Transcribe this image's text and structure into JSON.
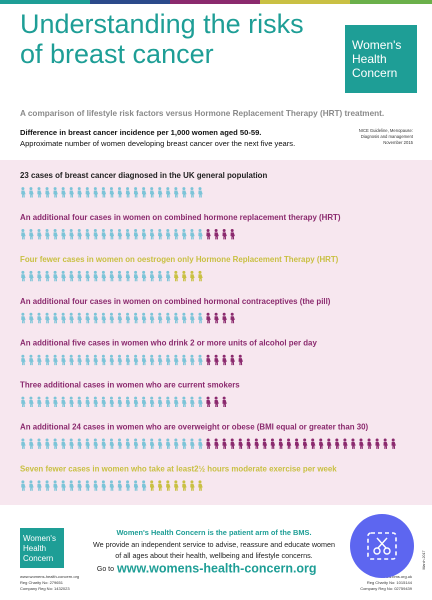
{
  "header": {
    "title_lines": [
      "Understanding the risks",
      "of breast cancer"
    ],
    "logo": [
      "Women's",
      "Health",
      "Concern"
    ]
  },
  "intro": {
    "subtitle": "A comparison of lifestyle risk factors versus Hormone Replacement Therapy (HRT) treatment.",
    "heading": "Difference in breast cancer incidence per 1,000 women aged 50-59.",
    "text": "Approximate number of women developing breast cancer over the next five years.",
    "source": [
      "NICE Guideline, Menopause:",
      "Diagnosis and management",
      "November 2015"
    ]
  },
  "rows": [
    {
      "label": "23 cases of breast cancer diagnosed in the UK general population",
      "label_color": "#222222",
      "counts": [
        23
      ],
      "colors": [
        "#7cc4d8"
      ]
    },
    {
      "label": "An additional four cases in women on combined hormone replacement therapy (HRT)",
      "label_color": "#8b2a6e",
      "counts": [
        23,
        4
      ],
      "colors": [
        "#7cc4d8",
        "#8b2a6e"
      ]
    },
    {
      "label": "Four fewer  cases in women on oestrogen only Hormone Replacement Therapy (HRT)",
      "label_color": "#c9c043",
      "counts": [
        19,
        4
      ],
      "colors": [
        "#7cc4d8",
        "#c9c043"
      ]
    },
    {
      "label": "An additional four cases in women on combined hormonal contraceptives (the pill)",
      "label_color": "#8b2a6e",
      "counts": [
        23,
        4
      ],
      "colors": [
        "#7cc4d8",
        "#8b2a6e"
      ]
    },
    {
      "label": "An additional five cases in women who drink 2 or more units of alcohol per day",
      "label_color": "#8b2a6e",
      "counts": [
        23,
        5
      ],
      "colors": [
        "#7cc4d8",
        "#8b2a6e"
      ]
    },
    {
      "label": "Three additional cases in women who are current smokers",
      "label_color": "#8b2a6e",
      "counts": [
        23,
        3
      ],
      "colors": [
        "#7cc4d8",
        "#8b2a6e"
      ]
    },
    {
      "label": "An additional 24 cases in women who are overweight or obese (BMI equal or greater than 30)",
      "label_color": "#8b2a6e",
      "counts": [
        23,
        24
      ],
      "colors": [
        "#7cc4d8",
        "#8b2a6e"
      ]
    },
    {
      "label": "Seven fewer cases in women who take at least2½ hours moderate exercise per week",
      "label_color": "#c9c043",
      "counts": [
        16,
        7
      ],
      "colors": [
        "#7cc4d8",
        "#c9c043"
      ]
    }
  ],
  "footer": {
    "logo": [
      "Women's",
      "Health",
      "Concern"
    ],
    "left": [
      "www.womens-health-concern.org",
      "Reg Charity No: 279651",
      "Company Reg No: 1432023"
    ],
    "tagline": "Women's Health Concern is the patient arm of the BMS.",
    "lines": [
      "We provide an independent service to advise, reassure and educate women",
      "of all ages about their health, wellbeing and lifestyle concerns."
    ],
    "go_to": "Go to",
    "url": "www.womens-health-concern.org",
    "right": [
      "www.bms.org.uk",
      "Reg Charity No: 1015144",
      "Company Reg No: 02759439"
    ],
    "date": "March 2017"
  }
}
